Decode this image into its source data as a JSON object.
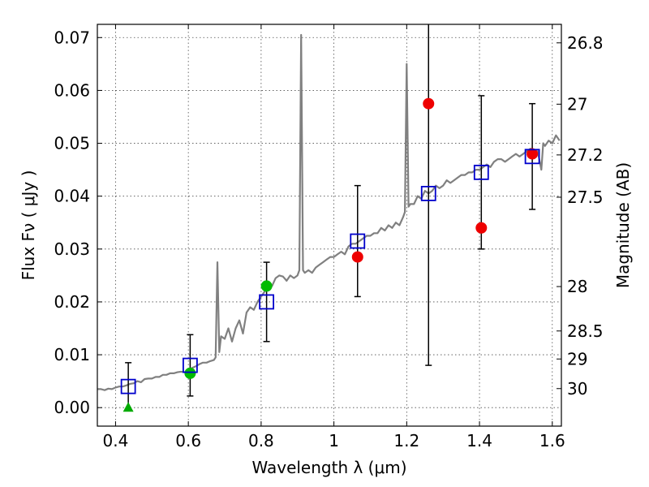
{
  "chart_data": {
    "type": "scatter",
    "xlabel": "Wavelength  λ (μm)",
    "ylabel": "Flux  Fν  ( μJy )",
    "y2label": "Magnitude (AB)",
    "xlim": [
      0.35,
      1.625
    ],
    "ylim": [
      -0.0035,
      0.0725
    ],
    "grid": true,
    "x_ticks": [
      {
        "value": 0.4,
        "label": "0.4"
      },
      {
        "value": 0.6,
        "label": "0.6"
      },
      {
        "value": 0.8,
        "label": "0.8"
      },
      {
        "value": 1.0,
        "label": "1"
      },
      {
        "value": 1.2,
        "label": "1.2"
      },
      {
        "value": 1.4,
        "label": "1.4"
      },
      {
        "value": 1.6,
        "label": "1.6"
      }
    ],
    "y_ticks": [
      {
        "value": 0.0,
        "label": "0.00"
      },
      {
        "value": 0.01,
        "label": "0.01"
      },
      {
        "value": 0.02,
        "label": "0.02"
      },
      {
        "value": 0.03,
        "label": "0.03"
      },
      {
        "value": 0.04,
        "label": "0.04"
      },
      {
        "value": 0.05,
        "label": "0.05"
      },
      {
        "value": 0.06,
        "label": "0.06"
      },
      {
        "value": 0.07,
        "label": "0.07"
      }
    ],
    "y2_ticks": [
      {
        "flux": 0.069,
        "label": "26.8"
      },
      {
        "flux": 0.0574,
        "label": "27"
      },
      {
        "flux": 0.0478,
        "label": "27.2"
      },
      {
        "flux": 0.0398,
        "label": "27.5"
      },
      {
        "flux": 0.0229,
        "label": "28"
      },
      {
        "flux": 0.0145,
        "label": "28.5"
      },
      {
        "flux": 0.0092,
        "label": "29"
      },
      {
        "flux": 0.0036,
        "label": "30"
      }
    ],
    "series": [
      {
        "kind": "line",
        "color": "#808080",
        "x": [
          0.35,
          0.36,
          0.37,
          0.38,
          0.39,
          0.4,
          0.41,
          0.42,
          0.43,
          0.44,
          0.45,
          0.46,
          0.47,
          0.48,
          0.49,
          0.5,
          0.51,
          0.52,
          0.53,
          0.54,
          0.55,
          0.56,
          0.57,
          0.58,
          0.59,
          0.6,
          0.61,
          0.62,
          0.63,
          0.64,
          0.65,
          0.66,
          0.67,
          0.675,
          0.68,
          0.685,
          0.69,
          0.7,
          0.71,
          0.72,
          0.73,
          0.74,
          0.75,
          0.76,
          0.77,
          0.78,
          0.79,
          0.8,
          0.81,
          0.82,
          0.83,
          0.84,
          0.85,
          0.86,
          0.87,
          0.88,
          0.89,
          0.9,
          0.905,
          0.91,
          0.915,
          0.92,
          0.93,
          0.94,
          0.95,
          0.96,
          0.97,
          0.98,
          0.99,
          1.0,
          1.01,
          1.02,
          1.03,
          1.04,
          1.05,
          1.06,
          1.07,
          1.08,
          1.09,
          1.1,
          1.11,
          1.12,
          1.13,
          1.14,
          1.15,
          1.16,
          1.17,
          1.18,
          1.19,
          1.195,
          1.2,
          1.205,
          1.21,
          1.22,
          1.23,
          1.24,
          1.25,
          1.26,
          1.27,
          1.28,
          1.29,
          1.3,
          1.31,
          1.32,
          1.33,
          1.34,
          1.35,
          1.36,
          1.37,
          1.38,
          1.39,
          1.4,
          1.41,
          1.42,
          1.43,
          1.44,
          1.45,
          1.46,
          1.47,
          1.48,
          1.49,
          1.5,
          1.51,
          1.52,
          1.53,
          1.54,
          1.55,
          1.56,
          1.57,
          1.575,
          1.58,
          1.59,
          1.6,
          1.61,
          1.62
        ],
        "y": [
          0.0035,
          0.0035,
          0.0033,
          0.0036,
          0.0035,
          0.0038,
          0.004,
          0.004,
          0.0042,
          0.0045,
          0.0046,
          0.005,
          0.0048,
          0.0054,
          0.0055,
          0.0055,
          0.0058,
          0.0058,
          0.0062,
          0.0062,
          0.0065,
          0.0065,
          0.0067,
          0.0068,
          0.0067,
          0.0069,
          0.0075,
          0.0078,
          0.0082,
          0.0085,
          0.0085,
          0.0088,
          0.009,
          0.0095,
          0.0275,
          0.0105,
          0.0135,
          0.013,
          0.015,
          0.0125,
          0.015,
          0.0165,
          0.014,
          0.018,
          0.019,
          0.0185,
          0.02,
          0.021,
          0.022,
          0.0225,
          0.023,
          0.0245,
          0.025,
          0.0248,
          0.024,
          0.025,
          0.0245,
          0.025,
          0.026,
          0.0705,
          0.026,
          0.0255,
          0.026,
          0.0255,
          0.0265,
          0.027,
          0.0275,
          0.028,
          0.0285,
          0.0285,
          0.029,
          0.0295,
          0.029,
          0.0305,
          0.031,
          0.031,
          0.0315,
          0.032,
          0.0325,
          0.0325,
          0.033,
          0.033,
          0.034,
          0.0335,
          0.0345,
          0.034,
          0.035,
          0.0345,
          0.036,
          0.037,
          0.065,
          0.038,
          0.0385,
          0.0385,
          0.04,
          0.0395,
          0.041,
          0.0405,
          0.041,
          0.042,
          0.0415,
          0.042,
          0.043,
          0.0425,
          0.043,
          0.0435,
          0.044,
          0.044,
          0.0445,
          0.0445,
          0.045,
          0.045,
          0.0455,
          0.046,
          0.0455,
          0.0465,
          0.047,
          0.047,
          0.0465,
          0.047,
          0.0475,
          0.048,
          0.0475,
          0.048,
          0.0485,
          0.049,
          0.048,
          0.0485,
          0.045,
          0.05,
          0.0495,
          0.0505,
          0.05,
          0.0515,
          0.0505
        ]
      },
      {
        "kind": "open_square",
        "color": "#0000cc",
        "x": [
          0.435,
          0.605,
          0.815,
          1.065,
          1.26,
          1.405,
          1.545
        ],
        "y": [
          0.004,
          0.008,
          0.02,
          0.0315,
          0.0405,
          0.0445,
          0.0475
        ],
        "yerr": [
          0.0045,
          0.0058,
          0.0075,
          0.0105,
          0.0325,
          0.0145,
          0.01
        ]
      },
      {
        "kind": "filled_circle",
        "color": "#00bb00",
        "x": [
          0.605,
          0.815
        ],
        "y": [
          0.0065,
          0.023
        ]
      },
      {
        "kind": "filled_circle",
        "color": "#ee0000",
        "x": [
          1.065,
          1.26,
          1.405,
          1.545
        ],
        "y": [
          0.0285,
          0.0575,
          0.034,
          0.048
        ]
      },
      {
        "kind": "triangle",
        "color": "#00aa00",
        "x": [
          0.435
        ],
        "y": [
          0.0
        ]
      }
    ]
  }
}
